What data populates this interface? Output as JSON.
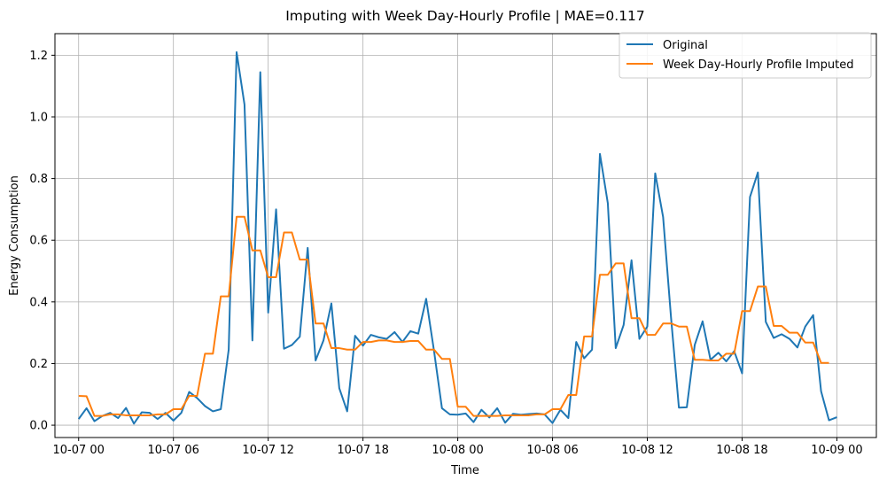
{
  "chart_data": {
    "type": "line",
    "title": "Imputing with Week Day-Hourly Profile | MAE=0.117",
    "xlabel": "Time",
    "ylabel": "Energy Consumption",
    "ylim": [
      -0.04,
      1.27
    ],
    "xlim": [
      -3,
      101
    ],
    "x_unit": "30-minute steps from 10-07 00:00",
    "grid": true,
    "legend_position": "top-right",
    "xticks": [
      {
        "pos": 0,
        "label": "10-07 00"
      },
      {
        "pos": 12,
        "label": "10-07 06"
      },
      {
        "pos": 24,
        "label": "10-07 12"
      },
      {
        "pos": 36,
        "label": "10-07 18"
      },
      {
        "pos": 48,
        "label": "10-08 00"
      },
      {
        "pos": 60,
        "label": "10-08 06"
      },
      {
        "pos": 72,
        "label": "10-08 12"
      },
      {
        "pos": 84,
        "label": "10-08 18"
      },
      {
        "pos": 96,
        "label": "10-09 00"
      }
    ],
    "yticks": [
      {
        "value": 0.0,
        "label": "0.0"
      },
      {
        "value": 0.2,
        "label": "0.2"
      },
      {
        "value": 0.4,
        "label": "0.4"
      },
      {
        "value": 0.6,
        "label": "0.6"
      },
      {
        "value": 0.8,
        "label": "0.8"
      },
      {
        "value": 1.0,
        "label": "1.0"
      },
      {
        "value": 1.2,
        "label": "1.2"
      }
    ],
    "series": [
      {
        "name": "Original",
        "color": "#1f77b4",
        "values": [
          0.02,
          0.055,
          0.013,
          0.03,
          0.04,
          0.023,
          0.056,
          0.005,
          0.042,
          0.04,
          0.02,
          0.04,
          0.015,
          0.04,
          0.108,
          0.088,
          0.062,
          0.045,
          0.052,
          0.245,
          1.21,
          1.04,
          0.275,
          1.145,
          0.365,
          0.7,
          0.248,
          0.26,
          0.287,
          0.575,
          0.21,
          0.275,
          0.395,
          0.12,
          0.045,
          0.29,
          0.258,
          0.293,
          0.285,
          0.28,
          0.302,
          0.27,
          0.305,
          0.297,
          0.41,
          0.24,
          0.055,
          0.035,
          0.034,
          0.038,
          0.01,
          0.05,
          0.025,
          0.055,
          0.008,
          0.037,
          0.034,
          0.036,
          0.038,
          0.035,
          0.007,
          0.05,
          0.023,
          0.27,
          0.217,
          0.245,
          0.88,
          0.72,
          0.25,
          0.325,
          0.535,
          0.28,
          0.32,
          0.817,
          0.675,
          0.35,
          0.057,
          0.058,
          0.26,
          0.337,
          0.212,
          0.235,
          0.207,
          0.24,
          0.168,
          0.74,
          0.82,
          0.335,
          0.283,
          0.295,
          0.28,
          0.252,
          0.32,
          0.357,
          0.11,
          0.016,
          0.026
        ]
      },
      {
        "name": "Week Day-Hourly Profile Imputed",
        "color": "#ff7f0e",
        "values": [
          0.095,
          0.094,
          0.03,
          0.03,
          0.035,
          0.035,
          0.032,
          0.032,
          0.032,
          0.032,
          0.035,
          0.035,
          0.052,
          0.052,
          0.095,
          0.095,
          0.232,
          0.232,
          0.418,
          0.418,
          0.676,
          0.676,
          0.567,
          0.567,
          0.48,
          0.48,
          0.625,
          0.625,
          0.537,
          0.537,
          0.33,
          0.33,
          0.25,
          0.25,
          0.245,
          0.245,
          0.27,
          0.27,
          0.275,
          0.275,
          0.27,
          0.27,
          0.273,
          0.273,
          0.245,
          0.245,
          0.215,
          0.215,
          0.06,
          0.06,
          0.03,
          0.03,
          0.03,
          0.03,
          0.032,
          0.032,
          0.032,
          0.032,
          0.035,
          0.035,
          0.052,
          0.052,
          0.098,
          0.098,
          0.288,
          0.288,
          0.488,
          0.488,
          0.525,
          0.525,
          0.347,
          0.347,
          0.293,
          0.293,
          0.33,
          0.33,
          0.32,
          0.32,
          0.212,
          0.212,
          0.21,
          0.21,
          0.232,
          0.232,
          0.37,
          0.37,
          0.45,
          0.45,
          0.322,
          0.322,
          0.3,
          0.3,
          0.268,
          0.268,
          0.202,
          0.202
        ]
      }
    ]
  }
}
